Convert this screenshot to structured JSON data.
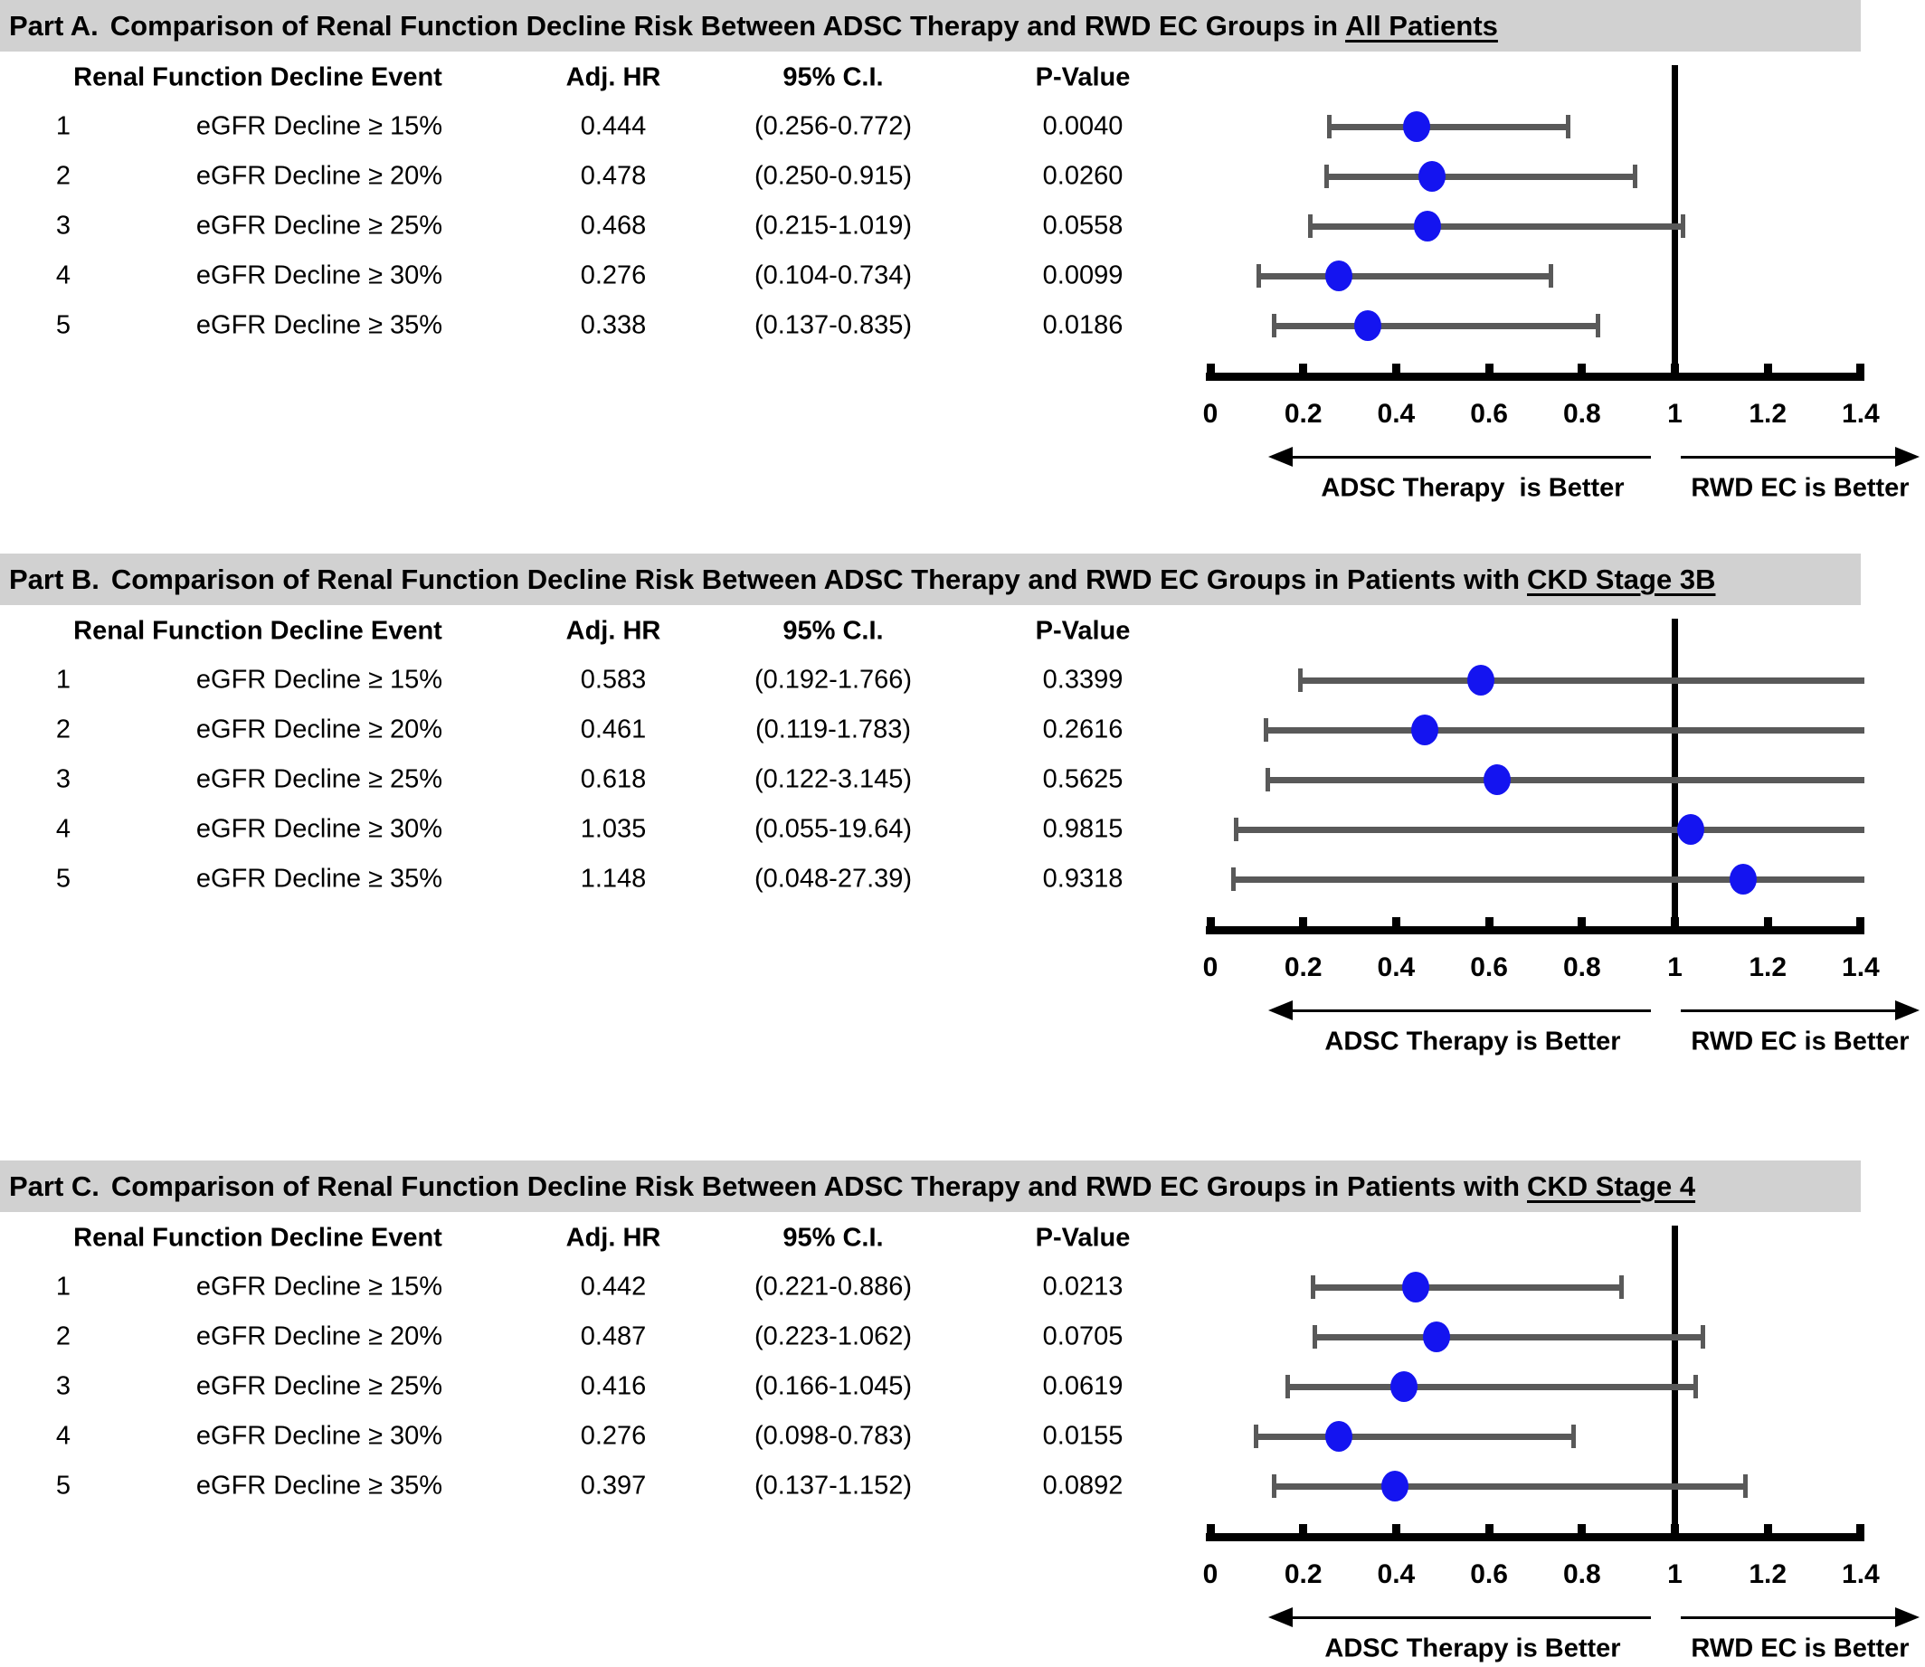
{
  "columns": {
    "event": "Renal Function Decline Event",
    "hr": "Adj. HR",
    "ci": "95% C.I.",
    "p": "P-Value"
  },
  "colors": {
    "title_bar_bg": "#d1d1d1",
    "marker": "#1414f0",
    "error_bar": "#595959",
    "axis": "#000000"
  },
  "chart_data": [
    {
      "type": "forest",
      "part_label": "Part A.",
      "title": "Comparison of Renal Function Decline Risk Between ADSC Therapy and RWD EC Groups in",
      "title_underlined": "All Patients",
      "xlim": [
        0,
        1.4
      ],
      "x_ticks": [
        "0",
        "0.2",
        "0.4",
        "0.6",
        "0.8",
        "1",
        "1.2",
        "1.4"
      ],
      "reference_line": 1,
      "arrow_left_label": "ADSC Therapy  is Better",
      "arrow_right_label": "RWD EC is Better",
      "rows": [
        {
          "num": "1",
          "event": "eGFR Decline ≥ 15%",
          "hr": 0.444,
          "hr_text": "0.444",
          "ci_low": 0.256,
          "ci_high": 0.772,
          "ci_text": "(0.256-0.772)",
          "p_text": "0.0040"
        },
        {
          "num": "2",
          "event": "eGFR Decline ≥ 20%",
          "hr": 0.478,
          "hr_text": "0.478",
          "ci_low": 0.25,
          "ci_high": 0.915,
          "ci_text": "(0.250-0.915)",
          "p_text": "0.0260"
        },
        {
          "num": "3",
          "event": "eGFR Decline ≥ 25%",
          "hr": 0.468,
          "hr_text": "0.468",
          "ci_low": 0.215,
          "ci_high": 1.019,
          "ci_text": "(0.215-1.019)",
          "p_text": "0.0558"
        },
        {
          "num": "4",
          "event": "eGFR Decline ≥ 30%",
          "hr": 0.276,
          "hr_text": "0.276",
          "ci_low": 0.104,
          "ci_high": 0.734,
          "ci_text": "(0.104-0.734)",
          "p_text": "0.0099"
        },
        {
          "num": "5",
          "event": "eGFR Decline ≥ 35%",
          "hr": 0.338,
          "hr_text": "0.338",
          "ci_low": 0.137,
          "ci_high": 0.835,
          "ci_text": "(0.137-0.835)",
          "p_text": "0.0186"
        }
      ]
    },
    {
      "type": "forest",
      "part_label": "Part B.",
      "title": "Comparison of Renal Function Decline Risk Between ADSC Therapy and RWD EC Groups in Patients with",
      "title_underlined": "CKD Stage 3B",
      "xlim": [
        0,
        1.4
      ],
      "x_ticks": [
        "0",
        "0.2",
        "0.4",
        "0.6",
        "0.8",
        "1",
        "1.2",
        "1.4"
      ],
      "reference_line": 1,
      "arrow_left_label": "ADSC Therapy is Better",
      "arrow_right_label": "RWD EC is Better",
      "rows": [
        {
          "num": "1",
          "event": "eGFR Decline ≥ 15%",
          "hr": 0.583,
          "hr_text": "0.583",
          "ci_low": 0.192,
          "ci_high": 1.766,
          "ci_text": "(0.192-1.766)",
          "p_text": "0.3399"
        },
        {
          "num": "2",
          "event": "eGFR Decline ≥ 20%",
          "hr": 0.461,
          "hr_text": "0.461",
          "ci_low": 0.119,
          "ci_high": 1.783,
          "ci_text": "(0.119-1.783)",
          "p_text": "0.2616"
        },
        {
          "num": "3",
          "event": "eGFR Decline ≥ 25%",
          "hr": 0.618,
          "hr_text": "0.618",
          "ci_low": 0.122,
          "ci_high": 3.145,
          "ci_text": "(0.122-3.145)",
          "p_text": "0.5625"
        },
        {
          "num": "4",
          "event": "eGFR Decline ≥ 30%",
          "hr": 1.035,
          "hr_text": "1.035",
          "ci_low": 0.055,
          "ci_high": 19.64,
          "ci_text": "(0.055-19.64)",
          "p_text": "0.9815"
        },
        {
          "num": "5",
          "event": "eGFR Decline ≥ 35%",
          "hr": 1.148,
          "hr_text": "1.148",
          "ci_low": 0.048,
          "ci_high": 27.39,
          "ci_text": "(0.048-27.39)",
          "p_text": "0.9318"
        }
      ]
    },
    {
      "type": "forest",
      "part_label": "Part C.",
      "title": "Comparison of Renal Function Decline Risk Between ADSC Therapy and RWD EC Groups in Patients with",
      "title_underlined": "CKD Stage 4",
      "xlim": [
        0,
        1.4
      ],
      "x_ticks": [
        "0",
        "0.2",
        "0.4",
        "0.6",
        "0.8",
        "1",
        "1.2",
        "1.4"
      ],
      "reference_line": 1,
      "arrow_left_label": "ADSC Therapy is Better",
      "arrow_right_label": "RWD EC is Better",
      "rows": [
        {
          "num": "1",
          "event": "eGFR Decline ≥ 15%",
          "hr": 0.442,
          "hr_text": "0.442",
          "ci_low": 0.221,
          "ci_high": 0.886,
          "ci_text": "(0.221-0.886)",
          "p_text": "0.0213"
        },
        {
          "num": "2",
          "event": "eGFR Decline ≥ 20%",
          "hr": 0.487,
          "hr_text": "0.487",
          "ci_low": 0.223,
          "ci_high": 1.062,
          "ci_text": "(0.223-1.062)",
          "p_text": "0.0705"
        },
        {
          "num": "3",
          "event": "eGFR Decline ≥ 25%",
          "hr": 0.416,
          "hr_text": "0.416",
          "ci_low": 0.166,
          "ci_high": 1.045,
          "ci_text": "(0.166-1.045)",
          "p_text": "0.0619"
        },
        {
          "num": "4",
          "event": "eGFR Decline ≥ 30%",
          "hr": 0.276,
          "hr_text": "0.276",
          "ci_low": 0.098,
          "ci_high": 0.783,
          "ci_text": "(0.098-0.783)",
          "p_text": "0.0155"
        },
        {
          "num": "5",
          "event": "eGFR Decline ≥ 35%",
          "hr": 0.397,
          "hr_text": "0.397",
          "ci_low": 0.137,
          "ci_high": 1.152,
          "ci_text": "(0.137-1.152)",
          "p_text": "0.0892"
        }
      ]
    }
  ]
}
